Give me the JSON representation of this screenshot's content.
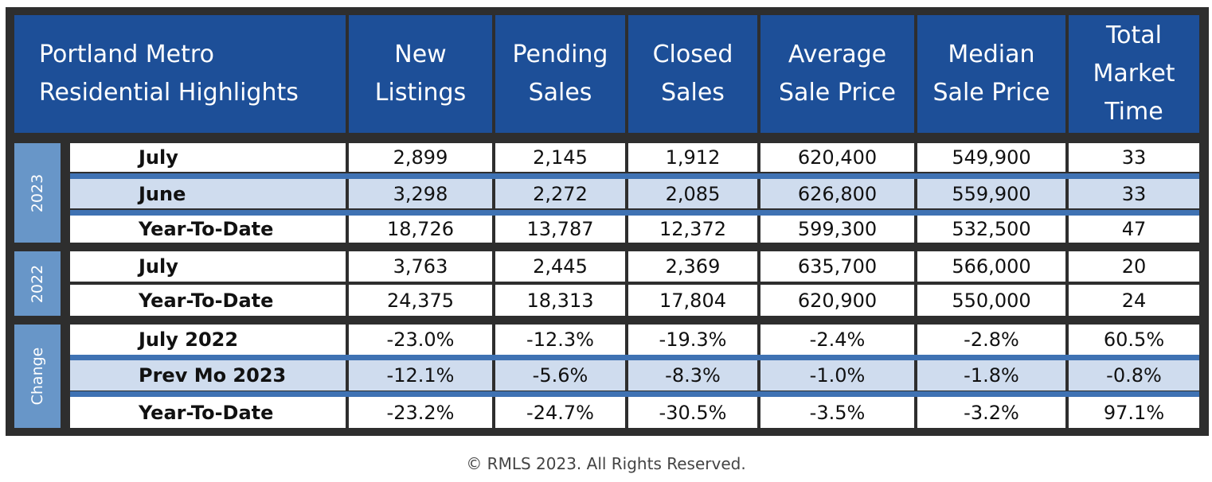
{
  "table": {
    "title_line1": "Portland Metro",
    "title_line2": "Residential Highlights",
    "columns": [
      {
        "line1": "New",
        "line2": "Listings"
      },
      {
        "line1": "Pending",
        "line2": "Sales"
      },
      {
        "line1": "Closed",
        "line2": "Sales"
      },
      {
        "line1": "Average",
        "line2": "Sale Price"
      },
      {
        "line1": "Median",
        "line2": "Sale Price"
      },
      {
        "line1": "Total",
        "line2": "Market",
        "line3": "Time"
      }
    ],
    "groups": [
      {
        "label": "2023",
        "rows": [
          {
            "label": "July",
            "values": [
              "2,899",
              "2,145",
              "1,912",
              "620,400",
              "549,900",
              "33"
            ]
          },
          {
            "label": "June",
            "values": [
              "3,298",
              "2,272",
              "2,085",
              "626,800",
              "559,900",
              "33"
            ]
          },
          {
            "label": "Year-To-Date",
            "values": [
              "18,726",
              "13,787",
              "12,372",
              "599,300",
              "532,500",
              "47"
            ]
          }
        ]
      },
      {
        "label": "2022",
        "rows": [
          {
            "label": "July",
            "values": [
              "3,763",
              "2,445",
              "2,369",
              "635,700",
              "566,000",
              "20"
            ]
          },
          {
            "label": "Year-To-Date",
            "values": [
              "24,375",
              "18,313",
              "17,804",
              "620,900",
              "550,000",
              "24"
            ]
          }
        ]
      },
      {
        "label": "Change",
        "rows": [
          {
            "label": "July 2022",
            "values": [
              "-23.0%",
              "-12.3%",
              "-19.3%",
              "-2.4%",
              "-2.8%",
              "60.5%"
            ]
          },
          {
            "label": "Prev Mo 2023",
            "values": [
              "-12.1%",
              "-5.6%",
              "-8.3%",
              "-1.0%",
              "-1.8%",
              "-0.8%"
            ]
          },
          {
            "label": "Year-To-Date",
            "values": [
              "-23.2%",
              "-24.7%",
              "-30.5%",
              "-3.5%",
              "-3.2%",
              "97.1%"
            ]
          }
        ]
      }
    ]
  },
  "footer": {
    "copyright": "© RMLS 2023. All Rights Reserved."
  }
}
